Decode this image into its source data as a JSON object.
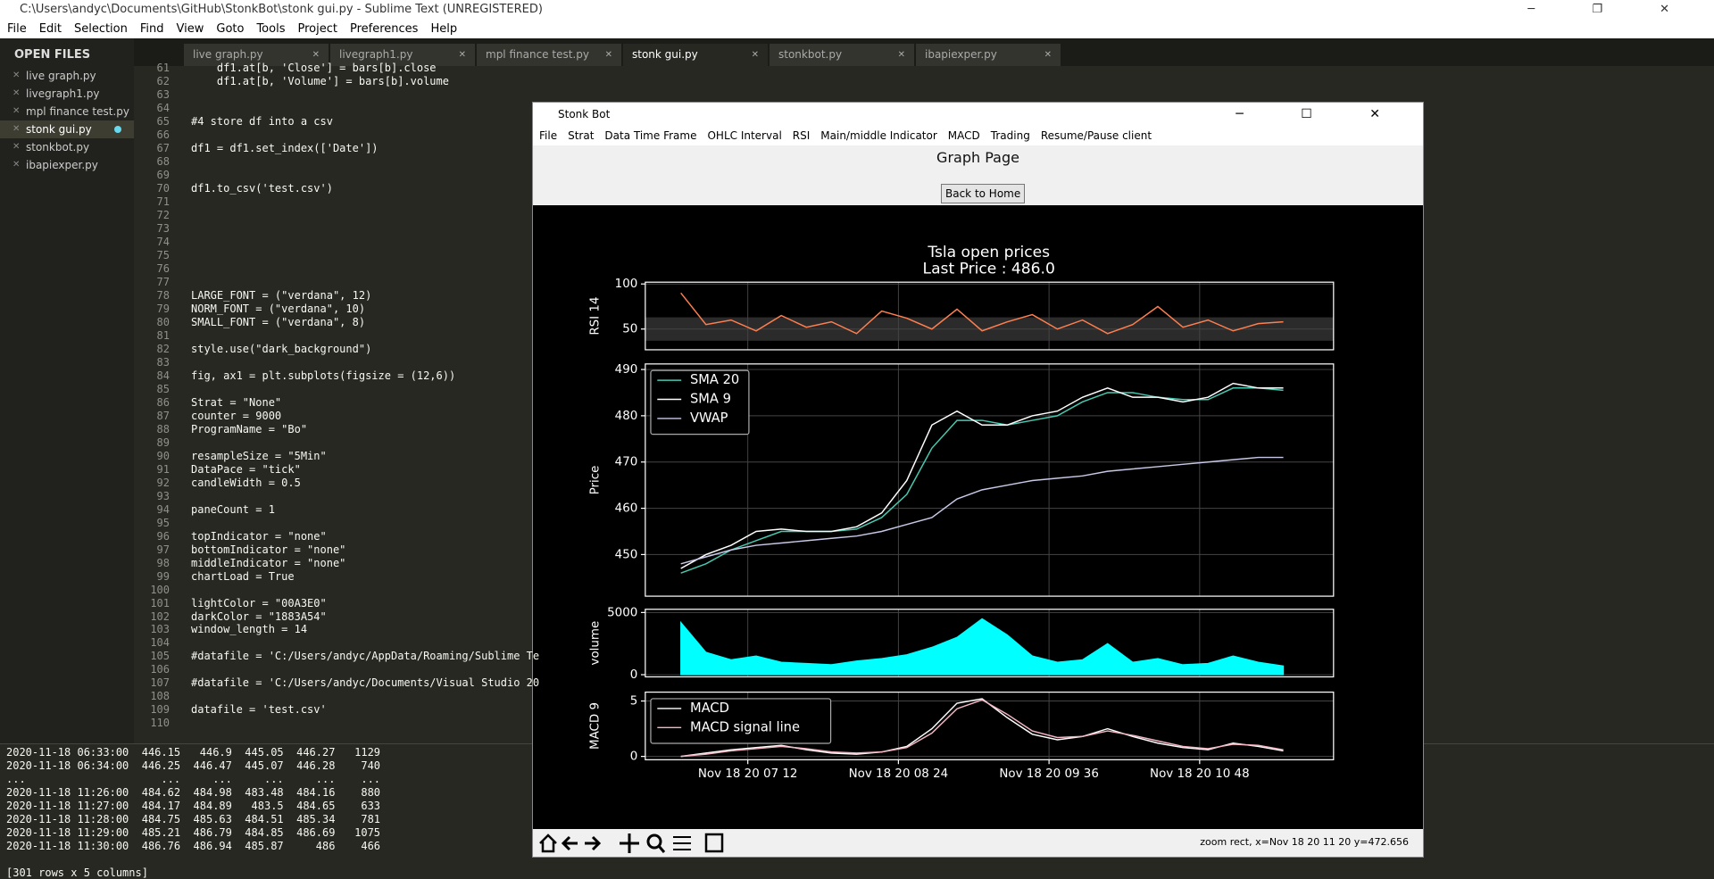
{
  "window_title": "C:\\Users\\andyc\\Documents\\GitHub\\StonkBot\\stonk gui.py - Sublime Text (UNREGISTERED)",
  "menu": [
    "File",
    "Edit",
    "Selection",
    "Find",
    "View",
    "Goto",
    "Tools",
    "Project",
    "Preferences",
    "Help"
  ],
  "sidebar": {
    "title": "OPEN FILES",
    "files": [
      "live graph.py",
      "livegraph1.py",
      "mpl finance test.py",
      "stonk gui.py",
      "stonkbot.py",
      "ibapiexper.py"
    ],
    "selected": 3
  },
  "tabs": {
    "items": [
      "live graph.py",
      "livegraph1.py",
      "mpl finance test.py",
      "stonk gui.py",
      "stonkbot.py",
      "ibapiexper.py"
    ],
    "active": 3
  },
  "editor": {
    "lines": [
      {
        "n": 61,
        "code": "    df1.at[b, 'Close'] = bars[b].close"
      },
      {
        "n": 62,
        "code": "    df1.at[b, 'Volume'] = bars[b].volume"
      },
      {
        "n": 63
      },
      {
        "n": 64
      },
      {
        "n": 65,
        "code": "#4 store df into a csv"
      },
      {
        "n": 66
      },
      {
        "n": 67,
        "code": "df1 = df1.set_index(['Date'])"
      },
      {
        "n": 68
      },
      {
        "n": 69
      },
      {
        "n": 70,
        "code": "df1.to_csv('test.csv')"
      },
      {
        "n": 71
      },
      {
        "n": 72
      },
      {
        "n": 73
      },
      {
        "n": 74
      },
      {
        "n": 75
      },
      {
        "n": 76
      },
      {
        "n": 77
      },
      {
        "n": 78,
        "code": "LARGE_FONT = (\"verdana\", 12)"
      },
      {
        "n": 79,
        "code": "NORM_FONT = (\"verdana\", 10)"
      },
      {
        "n": 80,
        "code": "SMALL_FONT = (\"verdana\", 8)"
      },
      {
        "n": 81
      },
      {
        "n": 82,
        "code": "style.use(\"dark_background\")"
      },
      {
        "n": 83
      },
      {
        "n": 84,
        "code": "fig, ax1 = plt.subplots(figsize = (12,6))"
      },
      {
        "n": 85
      },
      {
        "n": 86,
        "code": "Strat = \"None\""
      },
      {
        "n": 87,
        "code": "counter = 9000"
      },
      {
        "n": 88,
        "code": "ProgramName = \"Bo\""
      },
      {
        "n": 89
      },
      {
        "n": 90,
        "code": "resampleSize = \"5Min\""
      },
      {
        "n": 91,
        "code": "DataPace = \"tick\""
      },
      {
        "n": 92,
        "code": "candleWidth = 0.5"
      },
      {
        "n": 93
      },
      {
        "n": 94,
        "code": "paneCount = 1"
      },
      {
        "n": 95
      },
      {
        "n": 96,
        "code": "topIndicator = \"none\""
      },
      {
        "n": 97,
        "code": "bottomIndicator = \"none\""
      },
      {
        "n": 98,
        "code": "middleIndicator = \"none\""
      },
      {
        "n": 99,
        "code": "chartLoad = True"
      },
      {
        "n": 100
      },
      {
        "n": 101,
        "code": "lightColor = \"00A3E0\""
      },
      {
        "n": 102,
        "code": "darkColor = \"1883A54\""
      },
      {
        "n": 103,
        "code": "window_length = 14"
      },
      {
        "n": 104
      },
      {
        "n": 105,
        "code": "#datafile = 'C:/Users/andyc/AppData/Roaming/Sublime Te"
      },
      {
        "n": 106
      },
      {
        "n": 107,
        "code": "#datafile = 'C:/Users/andyc/Documents/Visual Studio 20"
      },
      {
        "n": 108
      },
      {
        "n": 109,
        "code": "datafile = 'test.csv'"
      },
      {
        "n": 110
      }
    ]
  },
  "console": {
    "lines": [
      "2020-11-18 06:33:00  446.15   446.9  445.05  446.27   1129",
      "2020-11-18 06:34:00  446.25  446.47  445.07  446.28    740",
      "...                     ...     ...     ...     ...    ...",
      "2020-11-18 11:26:00  484.62  484.98  483.48  484.16    880",
      "2020-11-18 11:27:00  484.17  484.89   483.5  484.65    633",
      "2020-11-18 11:28:00  484.75  485.63  484.51  485.34    781",
      "2020-11-18 11:29:00  485.21  486.79  484.85  486.69   1075",
      "2020-11-18 11:30:00  486.76  486.94  485.87     486    466",
      "",
      "[301 rows x 5 columns]"
    ]
  },
  "app": {
    "title": "Stonk Bot",
    "menu": [
      "File",
      "Strat",
      "Data Time Frame",
      "OHLC Interval",
      "RSI",
      "Main/middle Indicator",
      "MACD",
      "Trading",
      "Resume/Pause client"
    ],
    "page_title": "Graph Page",
    "button": "Back to Home",
    "status": "zoom rect, x=Nov 18 20 11 20 y=472.656"
  },
  "chart_data": {
    "type": "line",
    "title": "Tsla open prices",
    "subtitle": "Last Price : 486.0",
    "x": [
      400,
      412,
      424,
      436,
      448,
      460,
      472,
      484,
      496,
      508,
      520,
      532,
      544,
      556,
      568,
      580,
      592,
      604,
      616,
      628,
      640,
      652,
      664,
      676,
      688
    ],
    "xlim": [
      383,
      712
    ],
    "xticks": [
      {
        "value": 432,
        "label": "Nov 18 20 07 12"
      },
      {
        "value": 504,
        "label": "Nov 18 20 08 24"
      },
      {
        "value": 576,
        "label": "Nov 18 20 09 36"
      },
      {
        "value": 648,
        "label": "Nov 18 20 10 48"
      }
    ],
    "grid": true,
    "panels": [
      {
        "type": "line",
        "ylabel": "RSI 14",
        "ylim": [
          27,
          102
        ],
        "yticks": [
          50,
          100
        ],
        "band": [
          37,
          63
        ],
        "series": [
          {
            "name": "RSI",
            "color": "#ff7f50",
            "values": [
              90,
              55,
              60,
              48,
              65,
              52,
              58,
              45,
              70,
              62,
              50,
              72,
              48,
              58,
              66,
              50,
              60,
              45,
              55,
              75,
              52,
              60,
              48,
              56,
              58
            ]
          }
        ]
      },
      {
        "type": "line",
        "ylabel": "Price",
        "ylim": [
          441,
          491.2
        ],
        "yticks": [
          450,
          460,
          470,
          480,
          490
        ],
        "legend": "upper left",
        "series": [
          {
            "name": "SMA 20",
            "color": "#48c9b0",
            "values": [
              446,
              448,
              451,
              453,
              455,
              455,
              455,
              455.5,
              458,
              463,
              473,
              479,
              479,
              478,
              479,
              480,
              483,
              485,
              485,
              484,
              483.5,
              483.5,
              486,
              486,
              485.5
            ]
          },
          {
            "name": "SMA 9",
            "color": "#ffffff",
            "values": [
              447,
              450,
              452,
              455,
              455.5,
              455,
              455,
              456,
              459,
              466,
              478,
              481,
              478,
              478,
              480,
              481,
              484,
              486,
              484,
              484,
              483,
              484,
              487,
              486,
              486
            ]
          },
          {
            "name": "VWAP",
            "color": "#c8c8e8",
            "values": [
              448,
              449.5,
              451,
              452,
              452.5,
              453,
              453.5,
              454,
              455,
              456.5,
              458,
              462,
              464,
              465,
              466,
              466.5,
              467,
              468,
              468.5,
              469,
              469.5,
              470,
              470.5,
              471,
              471
            ]
          }
        ]
      },
      {
        "type": "area",
        "ylabel": "volume",
        "ylim": [
          -175,
          5260
        ],
        "yticks": [
          0,
          5000
        ],
        "series": [
          {
            "name": "volume",
            "color": "#00ffff",
            "values": [
              4200,
              1800,
              1200,
              1500,
              1000,
              900,
              800,
              1100,
              1300,
              1600,
              2200,
              3000,
              4500,
              3200,
              1500,
              1000,
              1200,
              2500,
              1000,
              1300,
              800,
              900,
              1500,
              1000,
              700
            ]
          }
        ]
      },
      {
        "type": "line",
        "ylabel": "MACD 9",
        "ylim": [
          -0.3,
          5.8
        ],
        "yticks": [
          0,
          5
        ],
        "legend": "upper left",
        "series": [
          {
            "name": "MACD",
            "color": "#ffffff",
            "values": [
              0,
              0.3,
              0.6,
              0.8,
              1.0,
              0.6,
              0.3,
              0.2,
              0.4,
              0.9,
              2.5,
              4.8,
              5.2,
              3.5,
              2,
              1.5,
              1.8,
              2.5,
              1.8,
              1.2,
              0.8,
              0.6,
              1.2,
              0.9,
              0.5
            ]
          },
          {
            "name": "MACD signal line",
            "color": "#f4b6c2",
            "values": [
              0,
              0.2,
              0.5,
              0.7,
              0.9,
              0.7,
              0.4,
              0.3,
              0.4,
              0.8,
              2.1,
              4.3,
              5.1,
              3.8,
              2.3,
              1.7,
              1.8,
              2.3,
              1.9,
              1.4,
              0.9,
              0.7,
              1.1,
              1.0,
              0.6
            ]
          }
        ]
      }
    ]
  }
}
